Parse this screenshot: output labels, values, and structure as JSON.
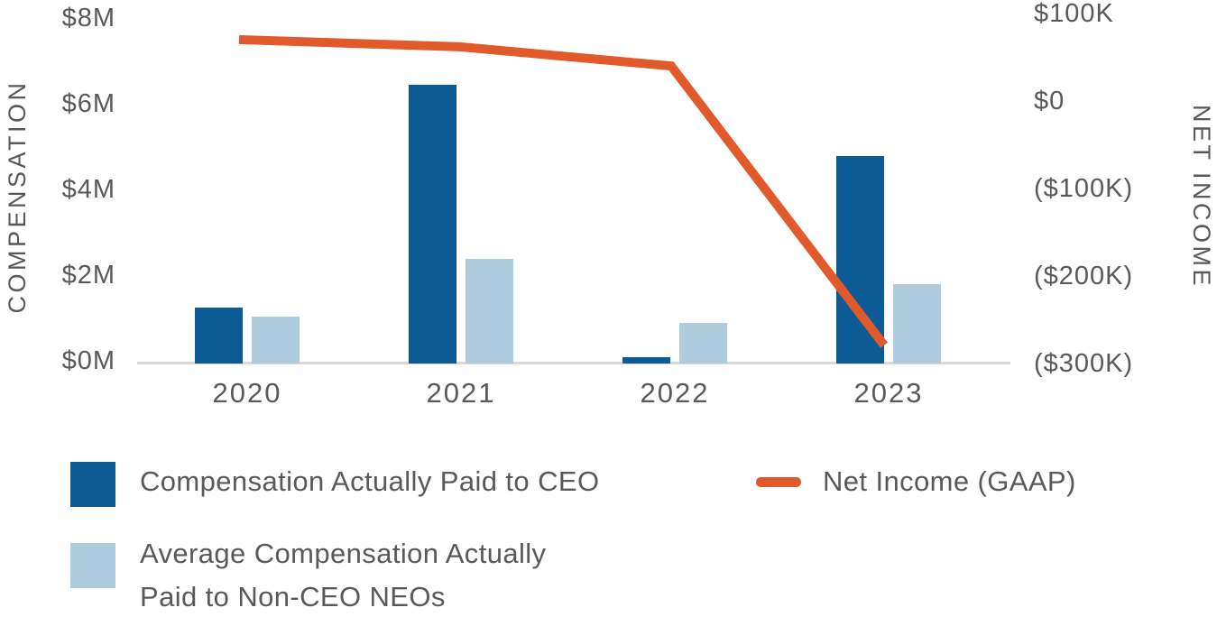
{
  "chart_data": {
    "type": "combo-bar-line",
    "categories": [
      "2020",
      "2021",
      "2022",
      "2023"
    ],
    "series": [
      {
        "name": "Compensation Actually Paid to CEO",
        "type": "bar",
        "axis": "left",
        "color": "#0C5A96",
        "unit": "$M",
        "values": [
          1.3,
          6.5,
          0.15,
          4.85
        ]
      },
      {
        "name": "Average Compensation Actually Paid to Non-CEO NEOs",
        "type": "bar",
        "axis": "left",
        "color": "#AFCBDE",
        "unit": "$M",
        "values": [
          1.1,
          2.45,
          0.95,
          1.85
        ]
      },
      {
        "name": "Net Income (GAAP)",
        "type": "line",
        "axis": "right",
        "color": "#E05A2B",
        "unit": "$K",
        "values": [
          70,
          62,
          40,
          -275
        ]
      }
    ],
    "left_axis": {
      "label": "COMPENSATION",
      "range": [
        0,
        8
      ],
      "ticks": [
        {
          "value": 8,
          "label": "$8M"
        },
        {
          "value": 6,
          "label": "$6M"
        },
        {
          "value": 4,
          "label": "$4M"
        },
        {
          "value": 2,
          "label": "$2M"
        },
        {
          "value": 0,
          "label": "$0M"
        }
      ]
    },
    "right_axis": {
      "label": "NET INCOME",
      "range": [
        -300,
        100
      ],
      "ticks": [
        {
          "value": 100,
          "label": "$100K"
        },
        {
          "value": 0,
          "label": "$0"
        },
        {
          "value": -100,
          "label": "($100K)"
        },
        {
          "value": -200,
          "label": "($200K)"
        },
        {
          "value": -300,
          "label": "($300K)"
        }
      ]
    },
    "legend": [
      {
        "swatch": "square",
        "color": "#0C5A96",
        "label": "Compensation Actually Paid to CEO"
      },
      {
        "swatch": "square",
        "color": "#AFCBDE",
        "label": "Average Compensation Actually\nPaid to Non-CEO NEOs"
      },
      {
        "swatch": "line",
        "color": "#E05A2B",
        "label": "Net Income (GAAP)"
      }
    ],
    "layout_hints": {
      "grid": "off",
      "legend_position": "bottom-left",
      "baseline_color": "#D8D8D8",
      "text_color": "#58595B"
    }
  }
}
